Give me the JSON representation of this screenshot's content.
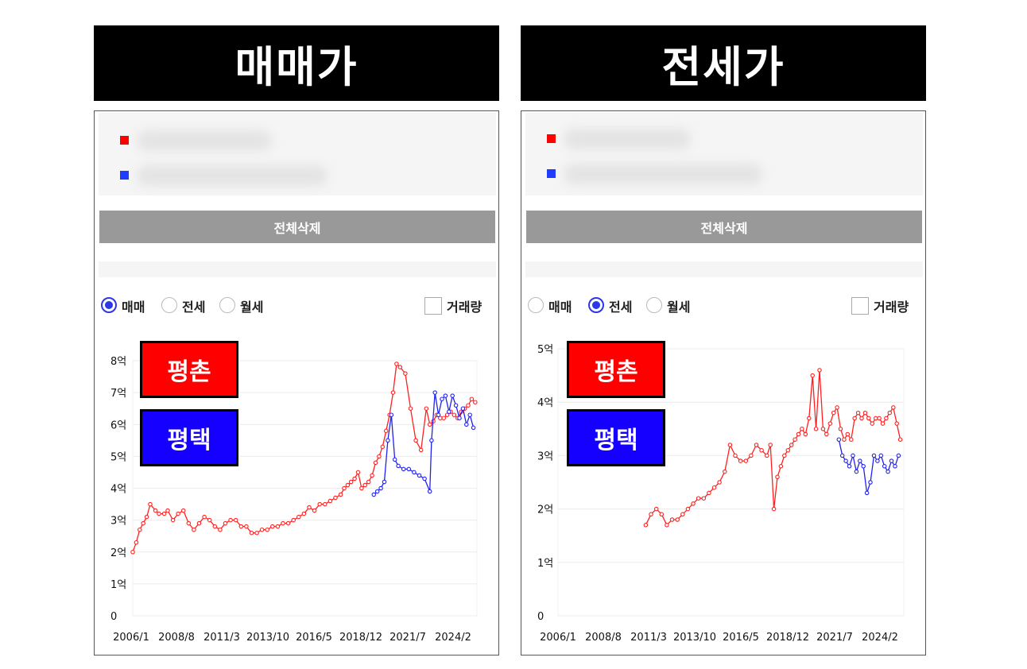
{
  "panels": [
    {
      "title": "매매가",
      "delete_label": "전체삭제",
      "options": [
        {
          "label": "매매",
          "selected": true
        },
        {
          "label": "전세",
          "selected": false
        },
        {
          "label": "월세",
          "selected": false
        }
      ],
      "volume_label": "거래량",
      "volume_checked": false,
      "tags": [
        "평촌",
        "평택"
      ]
    },
    {
      "title": "전세가",
      "delete_label": "전체삭제",
      "options": [
        {
          "label": "매매",
          "selected": false
        },
        {
          "label": "전세",
          "selected": true
        },
        {
          "label": "월세",
          "selected": false
        }
      ],
      "volume_label": "거래량",
      "volume_checked": false,
      "tags": [
        "평촌",
        "평택"
      ]
    }
  ],
  "colors": {
    "series_red": "#ff2020",
    "series_blue": "#2222ee",
    "radio_active": "#2b38e8"
  },
  "chart_data": [
    {
      "type": "line",
      "x_ticks": [
        "2006/1",
        "2008/8",
        "2011/3",
        "2013/10",
        "2016/5",
        "2018/12",
        "2021/7",
        "2024/2"
      ],
      "y_ticks": [
        "0",
        "1억",
        "2억",
        "3억",
        "4억",
        "5억",
        "6억",
        "7억",
        "8억"
      ],
      "ylim": [
        0,
        8
      ],
      "xlim": [
        2006.0,
        2025.7
      ],
      "series": [
        {
          "name": "평촌",
          "color": "#ff2020",
          "x": [
            2006.0,
            2006.2,
            2006.4,
            2006.6,
            2006.8,
            2007.0,
            2007.3,
            2007.5,
            2007.8,
            2008.0,
            2008.3,
            2008.6,
            2008.9,
            2009.2,
            2009.5,
            2009.8,
            2010.1,
            2010.4,
            2010.7,
            2011.0,
            2011.3,
            2011.6,
            2011.9,
            2012.2,
            2012.5,
            2012.8,
            2013.1,
            2013.4,
            2013.7,
            2014.0,
            2014.3,
            2014.6,
            2014.9,
            2015.2,
            2015.5,
            2015.8,
            2016.1,
            2016.4,
            2016.7,
            2017.0,
            2017.3,
            2017.6,
            2017.9,
            2018.1,
            2018.3,
            2018.5,
            2018.7,
            2018.9,
            2019.1,
            2019.3,
            2019.5,
            2019.7,
            2019.9,
            2020.1,
            2020.3,
            2020.5,
            2020.7,
            2020.9,
            2021.1,
            2021.3,
            2021.6,
            2021.9,
            2022.2,
            2022.5,
            2022.8,
            2023.0,
            2023.2,
            2023.4,
            2023.6,
            2023.8,
            2024.0,
            2024.2,
            2024.4,
            2024.6,
            2024.8,
            2025.0,
            2025.2,
            2025.4,
            2025.6
          ],
          "y": [
            2.0,
            2.3,
            2.7,
            2.9,
            3.1,
            3.5,
            3.3,
            3.2,
            3.2,
            3.3,
            3.0,
            3.2,
            3.3,
            2.9,
            2.7,
            2.9,
            3.1,
            3.0,
            2.8,
            2.7,
            2.9,
            3.0,
            3.0,
            2.8,
            2.8,
            2.6,
            2.6,
            2.7,
            2.7,
            2.8,
            2.8,
            2.9,
            2.9,
            3.0,
            3.1,
            3.2,
            3.4,
            3.3,
            3.5,
            3.5,
            3.6,
            3.7,
            3.8,
            4.0,
            4.1,
            4.2,
            4.3,
            4.5,
            4.0,
            4.1,
            4.2,
            4.4,
            4.8,
            5.0,
            5.3,
            5.8,
            6.3,
            7.0,
            7.9,
            7.8,
            7.6,
            6.5,
            5.5,
            5.2,
            6.5,
            6.0,
            6.1,
            6.3,
            6.2,
            6.2,
            6.3,
            6.4,
            6.3,
            6.2,
            6.4,
            6.5,
            6.6,
            6.8,
            6.7
          ]
        },
        {
          "name": "평택",
          "color": "#2222ee",
          "x": [
            2019.8,
            2020.0,
            2020.2,
            2020.4,
            2020.6,
            2020.8,
            2021.0,
            2021.2,
            2021.5,
            2021.8,
            2022.1,
            2022.4,
            2022.7,
            2023.0,
            2023.1,
            2023.3,
            2023.5,
            2023.7,
            2023.9,
            2024.1,
            2024.3,
            2024.5,
            2024.7,
            2024.9,
            2025.1,
            2025.3,
            2025.5
          ],
          "y": [
            3.8,
            3.9,
            4.0,
            4.2,
            5.5,
            6.3,
            4.9,
            4.7,
            4.6,
            4.6,
            4.5,
            4.4,
            4.3,
            3.9,
            5.5,
            7.0,
            6.3,
            6.8,
            6.9,
            6.4,
            6.9,
            6.6,
            6.2,
            6.5,
            6.0,
            6.3,
            5.9
          ]
        }
      ]
    },
    {
      "type": "line",
      "x_ticks": [
        "2006/1",
        "2008/8",
        "2011/3",
        "2013/10",
        "2016/5",
        "2018/12",
        "2021/7",
        "2024/2"
      ],
      "y_ticks": [
        "0",
        "1억",
        "2억",
        "3억",
        "4억",
        "5억"
      ],
      "ylim": [
        0,
        5
      ],
      "xlim": [
        2006.0,
        2025.7
      ],
      "series": [
        {
          "name": "평촌",
          "color": "#ff2020",
          "x": [
            2011.0,
            2011.3,
            2011.6,
            2011.9,
            2012.2,
            2012.5,
            2012.8,
            2013.1,
            2013.4,
            2013.7,
            2014.0,
            2014.3,
            2014.6,
            2014.9,
            2015.2,
            2015.5,
            2015.8,
            2016.1,
            2016.4,
            2016.7,
            2017.0,
            2017.3,
            2017.6,
            2017.9,
            2018.1,
            2018.3,
            2018.5,
            2018.7,
            2018.9,
            2019.1,
            2019.3,
            2019.5,
            2019.7,
            2019.9,
            2020.1,
            2020.3,
            2020.5,
            2020.7,
            2020.9,
            2021.1,
            2021.3,
            2021.5,
            2021.7,
            2021.9,
            2022.1,
            2022.3,
            2022.5,
            2022.7,
            2022.9,
            2023.1,
            2023.3,
            2023.5,
            2023.7,
            2023.9,
            2024.1,
            2024.3,
            2024.5,
            2024.7,
            2024.9,
            2025.1,
            2025.3,
            2025.5
          ],
          "y": [
            1.7,
            1.9,
            2.0,
            1.9,
            1.7,
            1.8,
            1.8,
            1.9,
            2.0,
            2.1,
            2.2,
            2.2,
            2.3,
            2.4,
            2.5,
            2.7,
            3.2,
            3.0,
            2.9,
            2.9,
            3.0,
            3.2,
            3.1,
            3.0,
            3.2,
            2.0,
            2.6,
            2.8,
            3.0,
            3.1,
            3.2,
            3.3,
            3.4,
            3.5,
            3.4,
            3.7,
            4.5,
            3.5,
            4.6,
            3.5,
            3.4,
            3.6,
            3.8,
            3.9,
            3.5,
            3.3,
            3.4,
            3.3,
            3.7,
            3.8,
            3.7,
            3.8,
            3.7,
            3.6,
            3.7,
            3.7,
            3.6,
            3.7,
            3.8,
            3.9,
            3.6,
            3.3
          ]
        },
        {
          "name": "평택",
          "color": "#2222ee",
          "x": [
            2022.0,
            2022.2,
            2022.4,
            2022.6,
            2022.8,
            2023.0,
            2023.2,
            2023.4,
            2023.6,
            2023.8,
            2024.0,
            2024.2,
            2024.4,
            2024.6,
            2024.8,
            2025.0,
            2025.2,
            2025.4
          ],
          "y": [
            3.3,
            3.0,
            2.9,
            2.8,
            3.0,
            2.7,
            2.9,
            2.8,
            2.3,
            2.5,
            3.0,
            2.9,
            3.0,
            2.8,
            2.7,
            2.9,
            2.8,
            3.0
          ]
        }
      ]
    }
  ]
}
